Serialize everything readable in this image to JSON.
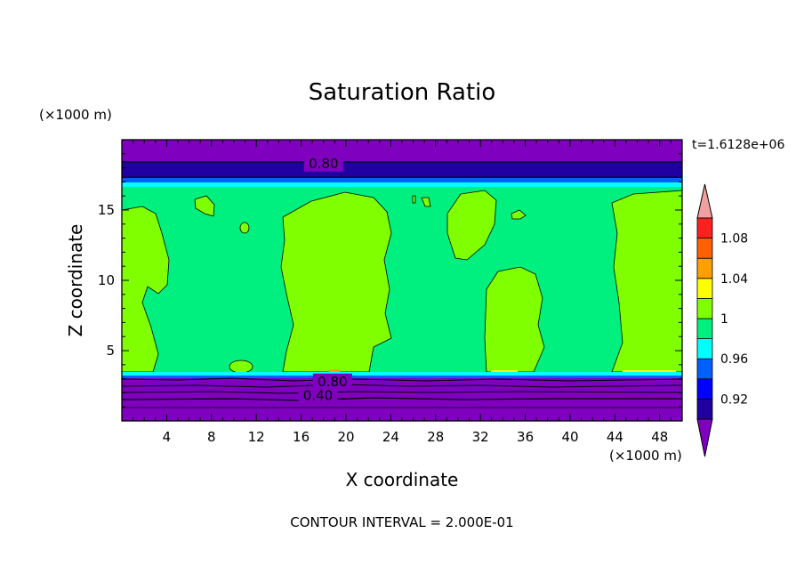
{
  "chart_data": {
    "type": "heatmap",
    "title": "Saturation Ratio",
    "xlabel": "X coordinate",
    "ylabel": "Z coordinate",
    "x_units": "(×1000 m)",
    "y_units": "(×1000 m)",
    "xlim": [
      0,
      50
    ],
    "ylim": [
      0,
      20
    ],
    "x_ticks": [
      4,
      8,
      12,
      16,
      20,
      24,
      28,
      32,
      36,
      40,
      44,
      48
    ],
    "y_ticks": [
      5,
      10,
      15
    ],
    "time_label": "t=1.6128e+06",
    "footer": "CONTOUR INTERVAL = 2.000E-01",
    "colorbar": {
      "levels": [
        0.9,
        0.92,
        0.94,
        0.96,
        0.98,
        1.0,
        1.02,
        1.04,
        1.06,
        1.08,
        1.1
      ],
      "labels": [
        "0.92",
        "0.96",
        "1",
        "1.04",
        "1.08"
      ],
      "colors": [
        "#7f00bf",
        "#2000a0",
        "#0000ff",
        "#0060ff",
        "#00ffff",
        "#00f080",
        "#80ff00",
        "#ffff00",
        "#ffa000",
        "#ff6000",
        "#ff2020",
        "#f0a0a0"
      ]
    },
    "contour_labels": [
      {
        "text": "0.80",
        "x": 18.0,
        "y": 18.3
      },
      {
        "text": "0.80",
        "x": 18.8,
        "y": 2.8
      },
      {
        "text": "0.40",
        "x": 17.5,
        "y": 1.8
      }
    ],
    "regions": {
      "upper_band_color": "#7f00bf",
      "dark_band_color": "#2000a0",
      "interior_color": "#00f080",
      "blob_color": "#80ff00",
      "edge_color": "#0060ff",
      "cyan_color": "#00ffff",
      "hot_color": "#ffa000"
    }
  }
}
